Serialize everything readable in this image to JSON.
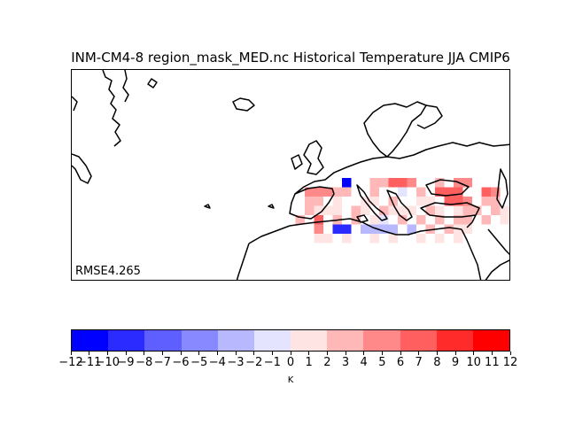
{
  "title": "INM-CM4-8 region_mask_MED.nc Historical Temperature JJA CMIP6",
  "rmse_label": "RMSE4.265",
  "colorbar": {
    "unit": "K",
    "ticks": [
      "−12",
      "−11",
      "−10",
      "−9",
      "−8",
      "−7",
      "−6",
      "−5",
      "−4",
      "−3",
      "−2",
      "−1",
      "0",
      "1",
      "2",
      "3",
      "4",
      "5",
      "6",
      "7",
      "8",
      "9",
      "10",
      "11",
      "12"
    ],
    "colors": [
      "#0000ff",
      "#2b2bff",
      "#5f5fff",
      "#8989ff",
      "#b8b8ff",
      "#e4e4ff",
      "#ffe4e4",
      "#ffb8b8",
      "#ff8989",
      "#ff5f5f",
      "#ff2b2b",
      "#ff0000"
    ]
  },
  "map": {
    "coastline_color": "#000000",
    "region": "Mediterranean"
  }
}
